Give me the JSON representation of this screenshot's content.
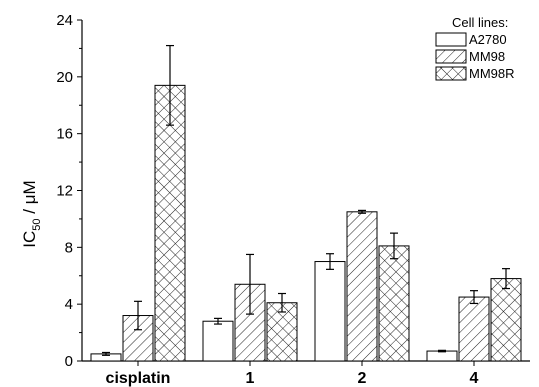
{
  "chart_data": {
    "type": "bar",
    "title": "",
    "xlabel": "",
    "ylabel_main": "IC",
    "ylabel_sub": "50",
    "ylabel_rest": " / μM",
    "ylim": [
      0,
      24
    ],
    "yticks": [
      0,
      4,
      8,
      12,
      16,
      20,
      24
    ],
    "categories": [
      "cisplatin",
      "1",
      "2",
      "4"
    ],
    "legend_title": "Cell lines:",
    "legend_position": "top-right",
    "series": [
      {
        "name": "A2780",
        "pattern": "none",
        "values": [
          0.5,
          2.8,
          7.0,
          0.7
        ],
        "errors": [
          0.1,
          0.2,
          0.55,
          0.05
        ]
      },
      {
        "name": "MM98",
        "pattern": "diagonal",
        "values": [
          3.2,
          5.4,
          10.5,
          4.5
        ],
        "errors": [
          1.0,
          2.1,
          0.1,
          0.45
        ]
      },
      {
        "name": "MM98R",
        "pattern": "crosshatch",
        "values": [
          19.4,
          4.1,
          8.1,
          5.8
        ],
        "errors": [
          2.8,
          0.65,
          0.9,
          0.7
        ]
      }
    ]
  }
}
